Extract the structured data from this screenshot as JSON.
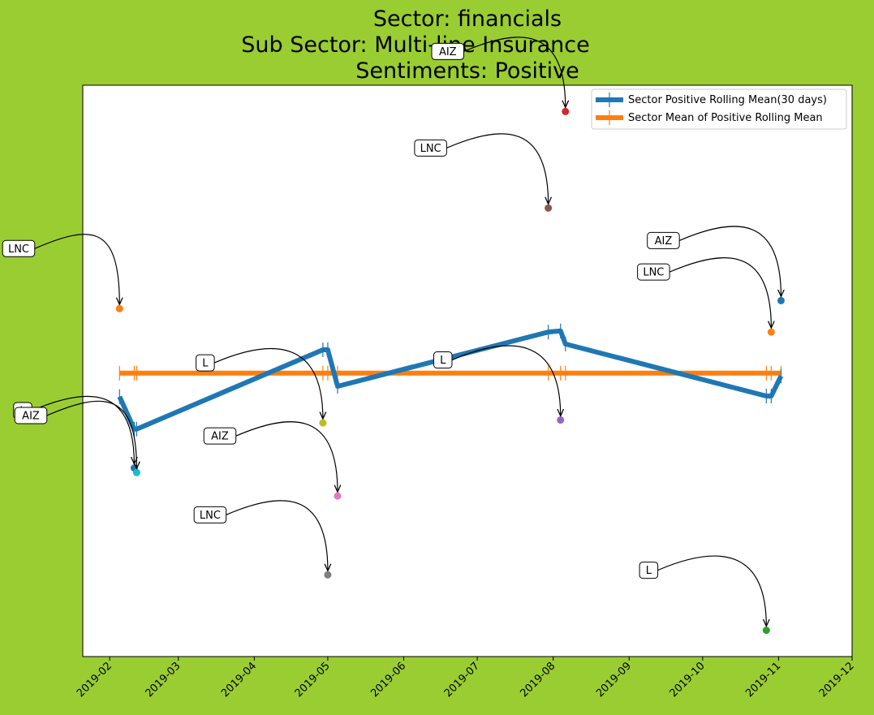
{
  "chart_data": {
    "type": "line",
    "title": [
      "Sector:  financials",
      "Sub Sector:  Multi-line Insurance",
      "Sentiments:  Positive"
    ],
    "xlabel": "",
    "ylabel": "",
    "x_ticks": [
      "2019-02",
      "2019-03",
      "2019-04",
      "2019-05",
      "2019-06",
      "2019-07",
      "2019-08",
      "2019-09",
      "2019-10",
      "2019-11",
      "2019-12"
    ],
    "xlim": [
      "2019-01-21",
      "2019-12-01"
    ],
    "ylim": [
      0,
      100
    ],
    "y_tick_labels_visible": false,
    "grid": false,
    "legend": {
      "placement": "top-right",
      "entries": [
        {
          "name": "Sector Positive Rolling Mean(30 days)",
          "color": "#1f77b4"
        },
        {
          "name": "Sector Mean of Positive Rolling Mean",
          "color": "#ff7f0e"
        }
      ]
    },
    "series": [
      {
        "name": "Sector Positive Rolling Mean(30 days)",
        "color": "#1f77b4",
        "x": [
          "2019-02-05",
          "2019-02-11",
          "2019-02-12",
          "2019-04-29",
          "2019-05-01",
          "2019-05-05",
          "2019-07-30",
          "2019-08-04",
          "2019-08-06",
          "2019-10-27",
          "2019-10-29",
          "2019-11-02"
        ],
        "y": [
          45.5,
          39.8,
          39.8,
          53.7,
          53.7,
          47.3,
          56.8,
          57.0,
          54.7,
          45.6,
          45.6,
          49.1
        ]
      },
      {
        "name": "Sector Mean of Positive Rolling Mean",
        "color": "#ff7f0e",
        "x": [
          "2019-02-05",
          "2019-02-11",
          "2019-02-12",
          "2019-04-29",
          "2019-05-01",
          "2019-05-05",
          "2019-07-30",
          "2019-08-04",
          "2019-08-06",
          "2019-10-27",
          "2019-10-29",
          "2019-11-02"
        ],
        "y": [
          49.6,
          49.6,
          49.6,
          49.6,
          49.6,
          49.6,
          49.6,
          49.6,
          49.6,
          49.6,
          49.6,
          49.6
        ]
      }
    ],
    "points": [
      {
        "label": "LNC",
        "x": "2019-02-05",
        "y": 60.9,
        "color": "#ff7f0e",
        "label_position": "upper-left"
      },
      {
        "label": "L",
        "x": "2019-02-11",
        "y": 33.0,
        "color": "#1f77b4",
        "label_position": "left"
      },
      {
        "label": "AIZ",
        "x": "2019-02-12",
        "y": 32.2,
        "color": "#17becf",
        "label_position": "left"
      },
      {
        "label": "L",
        "x": "2019-04-29",
        "y": 40.9,
        "color": "#bcbd22",
        "label_position": "upper-left"
      },
      {
        "label": "LNC",
        "x": "2019-05-01",
        "y": 14.3,
        "color": "#7f7f7f",
        "label_position": "upper-left"
      },
      {
        "label": "AIZ",
        "x": "2019-05-05",
        "y": 28.1,
        "color": "#e377c2",
        "label_position": "upper-left"
      },
      {
        "label": "LNC",
        "x": "2019-07-30",
        "y": 78.5,
        "color": "#8c564b",
        "label_position": "upper-left"
      },
      {
        "label": "L",
        "x": "2019-08-04",
        "y": 41.4,
        "color": "#9467bd",
        "label_position": "upper-left"
      },
      {
        "label": "AIZ",
        "x": "2019-08-06",
        "y": 95.4,
        "color": "#d62728",
        "label_position": "upper-left"
      },
      {
        "label": "L",
        "x": "2019-10-27",
        "y": 4.6,
        "color": "#2ca02c",
        "label_position": "upper-left"
      },
      {
        "label": "LNC",
        "x": "2019-10-29",
        "y": 56.8,
        "color": "#ff7f0e",
        "label_position": "upper-left"
      },
      {
        "label": "AIZ",
        "x": "2019-11-02",
        "y": 62.3,
        "color": "#1f77b4",
        "label_position": "upper-left"
      }
    ]
  }
}
